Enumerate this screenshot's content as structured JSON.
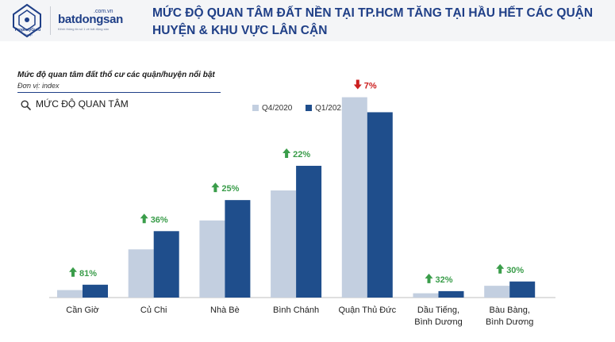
{
  "header": {
    "title": "MỨC ĐỘ QUAN TÂM ĐẤT NỀN TẠI TP.HCM TĂNG TẠI HẦU HẾT CÁC QUẬN HUYỆN & KHU VỰC LÂN CẬN",
    "logo_pg": "PropertyGuru",
    "logo_pg_sub": "Group",
    "logo_bds_domain": ".com.vn",
    "logo_bds": "batdongsan",
    "logo_bds_tagline": "Kênh thông tin số 1 về bất động sản"
  },
  "chart_meta": {
    "subtitle": "Mức độ quan tâm đất thổ cư các quận/huyện nổi bật",
    "unit": "Đơn vị: index",
    "metric_label": "MỨC ĐỘ QUAN TÂM"
  },
  "colors": {
    "q4": "#c3cfe0",
    "q1": "#1f4e8c",
    "up": "#3a9d4a",
    "down": "#cc1f1f",
    "title": "#1f3f87"
  },
  "chart_data": {
    "type": "bar",
    "categories": [
      "Cần Giờ",
      "Củ Chi",
      "Nhà Bè",
      "Bình Chánh",
      "Quận Thủ Đức",
      "Dầu Tiếng, Bình Dương",
      "Bàu Bàng, Bình Dương"
    ],
    "series": [
      {
        "name": "Q4/2020",
        "values": [
          7,
          45,
          72,
          100,
          187,
          4,
          11
        ]
      },
      {
        "name": "Q1/2021",
        "values": [
          12,
          62,
          91,
          123,
          173,
          6,
          15
        ]
      }
    ],
    "changes": [
      {
        "label": "81%",
        "direction": "up"
      },
      {
        "label": "36%",
        "direction": "up"
      },
      {
        "label": "25%",
        "direction": "up"
      },
      {
        "label": "22%",
        "direction": "up"
      },
      {
        "label": "7%",
        "direction": "down"
      },
      {
        "label": "32%",
        "direction": "up"
      },
      {
        "label": "30%",
        "direction": "up"
      }
    ],
    "ylim": [
      0,
      200
    ],
    "grid": false,
    "legend_position": "top-center"
  }
}
